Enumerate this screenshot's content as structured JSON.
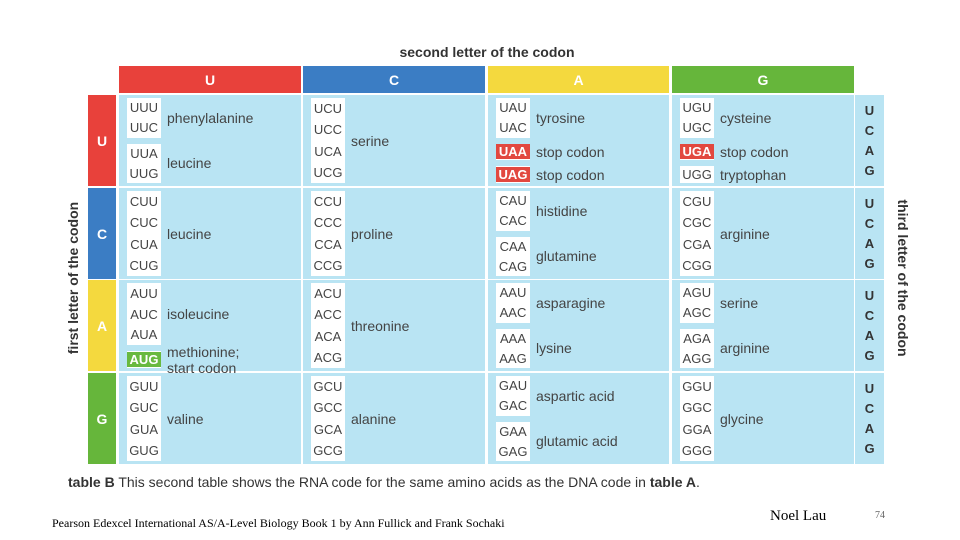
{
  "second_letter_label": "second letter of the codon",
  "first_letter_label": "first letter of the codon",
  "third_letter_label": "third letter of the codon",
  "column_headers": [
    {
      "letter": "U",
      "color": "#e8413b"
    },
    {
      "letter": "C",
      "color": "#3b7dc4"
    },
    {
      "letter": "A",
      "color": "#f4d93e"
    },
    {
      "letter": "G",
      "color": "#66b63b"
    }
  ],
  "row_headers": [
    {
      "letter": "U",
      "color": "#e8413b"
    },
    {
      "letter": "C",
      "color": "#3b7dc4"
    },
    {
      "letter": "A",
      "color": "#f4d93e"
    },
    {
      "letter": "G",
      "color": "#66b63b"
    }
  ],
  "third_letters": [
    "U",
    "C",
    "A",
    "G"
  ],
  "rows": [
    [
      [
        {
          "codons": [
            {
              "t": "UUU"
            },
            {
              "t": "UUC"
            }
          ],
          "aa": "phenylalanine"
        },
        {
          "codons": [
            {
              "t": "UUA"
            },
            {
              "t": "UUG"
            }
          ],
          "aa": "leucine"
        }
      ],
      [
        {
          "codons": [
            {
              "t": "UCU"
            },
            {
              "t": "UCC"
            },
            {
              "t": "UCA"
            },
            {
              "t": "UCG"
            }
          ],
          "aa": "serine"
        }
      ],
      [
        {
          "codons": [
            {
              "t": "UAU"
            },
            {
              "t": "UAC"
            }
          ],
          "aa": "tyrosine"
        },
        {
          "codons": [
            {
              "t": "UAA",
              "hl": "red"
            }
          ],
          "aa": "stop codon"
        },
        {
          "codons": [
            {
              "t": "UAG",
              "hl": "red"
            }
          ],
          "aa": "stop codon"
        }
      ],
      [
        {
          "codons": [
            {
              "t": "UGU"
            },
            {
              "t": "UGC"
            }
          ],
          "aa": "cysteine"
        },
        {
          "codons": [
            {
              "t": "UGA",
              "hl": "red"
            }
          ],
          "aa": "stop codon"
        },
        {
          "codons": [
            {
              "t": "UGG"
            }
          ],
          "aa": "tryptophan"
        }
      ]
    ],
    [
      [
        {
          "codons": [
            {
              "t": "CUU"
            },
            {
              "t": "CUC"
            },
            {
              "t": "CUA"
            },
            {
              "t": "CUG"
            }
          ],
          "aa": "leucine"
        }
      ],
      [
        {
          "codons": [
            {
              "t": "CCU"
            },
            {
              "t": "CCC"
            },
            {
              "t": "CCA"
            },
            {
              "t": "CCG"
            }
          ],
          "aa": "proline"
        }
      ],
      [
        {
          "codons": [
            {
              "t": "CAU"
            },
            {
              "t": "CAC"
            }
          ],
          "aa": "histidine"
        },
        {
          "codons": [
            {
              "t": "CAA"
            },
            {
              "t": "CAG"
            }
          ],
          "aa": "glutamine"
        }
      ],
      [
        {
          "codons": [
            {
              "t": "CGU"
            },
            {
              "t": "CGC"
            },
            {
              "t": "CGA"
            },
            {
              "t": "CGG"
            }
          ],
          "aa": "arginine"
        }
      ]
    ],
    [
      [
        {
          "codons": [
            {
              "t": "AUU"
            },
            {
              "t": "AUC"
            },
            {
              "t": "AUA"
            }
          ],
          "aa": "isoleucine"
        },
        {
          "codons": [
            {
              "t": "AUG",
              "hl": "green"
            }
          ],
          "aa": "methionine;\nstart codon"
        }
      ],
      [
        {
          "codons": [
            {
              "t": "ACU"
            },
            {
              "t": "ACC"
            },
            {
              "t": "ACA"
            },
            {
              "t": "ACG"
            }
          ],
          "aa": "threonine"
        }
      ],
      [
        {
          "codons": [
            {
              "t": "AAU"
            },
            {
              "t": "AAC"
            }
          ],
          "aa": "asparagine"
        },
        {
          "codons": [
            {
              "t": "AAA"
            },
            {
              "t": "AAG"
            }
          ],
          "aa": "lysine"
        }
      ],
      [
        {
          "codons": [
            {
              "t": "AGU"
            },
            {
              "t": "AGC"
            }
          ],
          "aa": "serine"
        },
        {
          "codons": [
            {
              "t": "AGA"
            },
            {
              "t": "AGG"
            }
          ],
          "aa": "arginine"
        }
      ]
    ],
    [
      [
        {
          "codons": [
            {
              "t": "GUU"
            },
            {
              "t": "GUC"
            },
            {
              "t": "GUA"
            },
            {
              "t": "GUG"
            }
          ],
          "aa": "valine"
        }
      ],
      [
        {
          "codons": [
            {
              "t": "GCU"
            },
            {
              "t": "GCC"
            },
            {
              "t": "GCA"
            },
            {
              "t": "GCG"
            }
          ],
          "aa": "alanine"
        }
      ],
      [
        {
          "codons": [
            {
              "t": "GAU"
            },
            {
              "t": "GAC"
            }
          ],
          "aa": "aspartic acid"
        },
        {
          "codons": [
            {
              "t": "GAA"
            },
            {
              "t": "GAG"
            }
          ],
          "aa": "glutamic acid"
        }
      ],
      [
        {
          "codons": [
            {
              "t": "GGU"
            },
            {
              "t": "GGC"
            },
            {
              "t": "GGA"
            },
            {
              "t": "GGG"
            }
          ],
          "aa": "glycine"
        }
      ]
    ]
  ],
  "caption": {
    "label": "table B",
    "text": " This second table shows the RNA code for the same amino acids as the DNA code in ",
    "ref": "table A",
    "end": "."
  },
  "credit": "Pearson Edexcel International AS/A-Level Biology Book 1 by Ann Fullick and Frank Sochaki",
  "author": "Noel Lau",
  "slide_number": "74"
}
